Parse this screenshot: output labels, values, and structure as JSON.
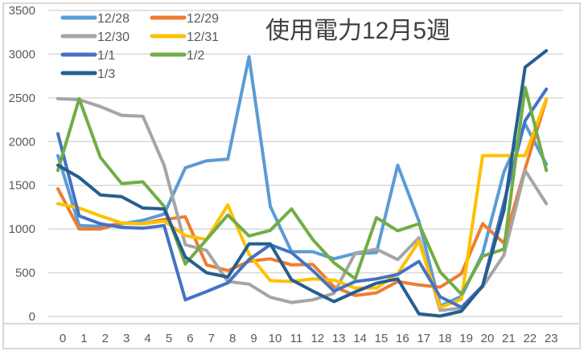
{
  "chart_data": {
    "type": "line",
    "title": "使用電力12月5週",
    "xlabel": "",
    "ylabel": "",
    "x": [
      0,
      1,
      2,
      3,
      4,
      5,
      6,
      7,
      8,
      9,
      10,
      11,
      12,
      13,
      14,
      15,
      16,
      17,
      18,
      19,
      20,
      21,
      22,
      23
    ],
    "y_ticks": [
      0,
      500,
      1000,
      1500,
      2000,
      2500,
      3000,
      3500
    ],
    "ylim": [
      0,
      3500
    ],
    "grid": true,
    "legend_position": "top-left (inside plot)",
    "series": [
      {
        "name": "12/28",
        "color": "#5B9BD5",
        "values": [
          1840,
          1040,
          1030,
          1060,
          1100,
          1170,
          1700,
          1780,
          1800,
          2970,
          1260,
          740,
          740,
          660,
          720,
          730,
          1730,
          1090,
          120,
          230,
          720,
          1650,
          2200,
          1740
        ]
      },
      {
        "name": "12/29",
        "color": "#ED7D31",
        "values": [
          1460,
          1000,
          1000,
          1070,
          1060,
          1110,
          1140,
          590,
          525,
          630,
          660,
          590,
          595,
          340,
          240,
          270,
          400,
          360,
          335,
          490,
          1060,
          840,
          1690,
          2480
        ]
      },
      {
        "name": "12/30",
        "color": "#A5A5A5",
        "values": [
          2490,
          2480,
          2400,
          2300,
          2290,
          1730,
          820,
          755,
          400,
          370,
          220,
          160,
          190,
          265,
          725,
          770,
          650,
          900,
          70,
          95,
          340,
          700,
          1670,
          1290
        ]
      },
      {
        "name": "12/31",
        "color": "#FFC000",
        "values": [
          1290,
          1240,
          1150,
          1070,
          1060,
          1090,
          925,
          880,
          1275,
          710,
          410,
          400,
          430,
          415,
          325,
          325,
          490,
          860,
          105,
          195,
          1840,
          1840,
          1840,
          2490
        ]
      },
      {
        "name": "1/1",
        "color": "#4472C4",
        "values": [
          2090,
          1150,
          1060,
          1020,
          1010,
          1040,
          190,
          285,
          385,
          650,
          820,
          730,
          525,
          290,
          400,
          430,
          480,
          630,
          225,
          105,
          350,
          1300,
          2240,
          2600
        ]
      },
      {
        "name": "1/2",
        "color": "#70AD47",
        "values": [
          1670,
          2490,
          1820,
          1520,
          1540,
          1260,
          600,
          880,
          1160,
          920,
          985,
          1230,
          880,
          615,
          430,
          1130,
          980,
          1060,
          510,
          255,
          690,
          770,
          2620,
          1670
        ]
      },
      {
        "name": "1/3",
        "color": "#255E91",
        "values": [
          1730,
          1590,
          1390,
          1370,
          1240,
          1230,
          680,
          500,
          450,
          830,
          830,
          420,
          290,
          170,
          280,
          380,
          430,
          30,
          5,
          60,
          350,
          1210,
          2850,
          3040
        ]
      }
    ]
  }
}
